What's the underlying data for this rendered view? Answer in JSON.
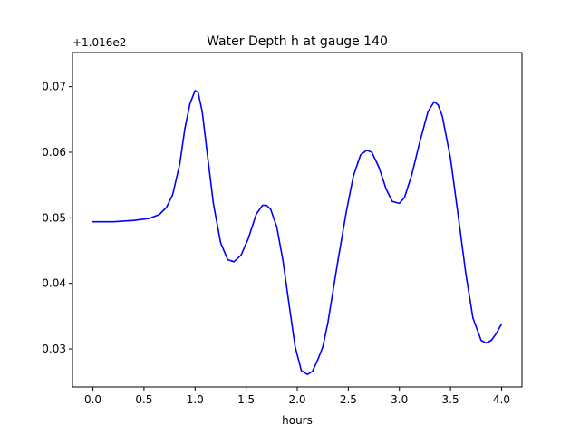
{
  "chart_data": {
    "type": "line",
    "title": "Water Depth h at gauge 140",
    "xlabel": "hours",
    "ylabel": "",
    "y_offset_label": "+1.016e2",
    "xlim": [
      -0.2,
      4.2
    ],
    "ylim": [
      0.0242,
      0.0752
    ],
    "x_ticks": [
      0.0,
      0.5,
      1.0,
      1.5,
      2.0,
      2.5,
      3.0,
      3.5,
      4.0
    ],
    "x_tick_labels": [
      "0.0",
      "0.5",
      "1.0",
      "1.5",
      "2.0",
      "2.5",
      "3.0",
      "3.5",
      "4.0"
    ],
    "y_ticks": [
      0.03,
      0.04,
      0.05,
      0.06,
      0.07
    ],
    "y_tick_labels": [
      "0.03",
      "0.04",
      "0.05",
      "0.06",
      "0.07"
    ],
    "grid": false,
    "series": [
      {
        "color": "#0000ff",
        "x": [
          0.0,
          0.2,
          0.4,
          0.55,
          0.65,
          0.72,
          0.78,
          0.85,
          0.9,
          0.95,
          1.0,
          1.03,
          1.07,
          1.12,
          1.18,
          1.25,
          1.32,
          1.38,
          1.45,
          1.52,
          1.6,
          1.66,
          1.7,
          1.74,
          1.8,
          1.86,
          1.92,
          1.98,
          2.04,
          2.1,
          2.15,
          2.2,
          2.25,
          2.3,
          2.4,
          2.48,
          2.55,
          2.62,
          2.68,
          2.73,
          2.8,
          2.87,
          2.93,
          3.0,
          3.05,
          3.12,
          3.2,
          3.28,
          3.34,
          3.38,
          3.42,
          3.5,
          3.58,
          3.65,
          3.72,
          3.8,
          3.85,
          3.9,
          3.95,
          4.0
        ],
        "y": [
          0.0494,
          0.0494,
          0.0496,
          0.0499,
          0.0505,
          0.0516,
          0.0535,
          0.0582,
          0.0636,
          0.0674,
          0.0694,
          0.0691,
          0.0662,
          0.0597,
          0.0521,
          0.0462,
          0.0436,
          0.0433,
          0.0443,
          0.0468,
          0.0506,
          0.0519,
          0.0519,
          0.0513,
          0.0486,
          0.0435,
          0.0368,
          0.0303,
          0.0267,
          0.0261,
          0.0266,
          0.0283,
          0.0303,
          0.034,
          0.0436,
          0.0509,
          0.0564,
          0.0596,
          0.0603,
          0.06,
          0.0577,
          0.0544,
          0.0525,
          0.0522,
          0.0531,
          0.0565,
          0.0616,
          0.0662,
          0.0677,
          0.0672,
          0.0655,
          0.0591,
          0.0498,
          0.0415,
          0.0347,
          0.0313,
          0.0309,
          0.0313,
          0.0324,
          0.0338
        ]
      }
    ]
  }
}
